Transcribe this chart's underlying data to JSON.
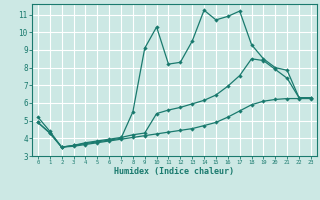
{
  "xlabel": "Humidex (Indice chaleur)",
  "bg_color": "#cce8e4",
  "grid_color": "#ffffff",
  "line_color": "#1a7a6e",
  "spine_color": "#1a7a6e",
  "tick_color": "#1a7a6e",
  "xlim": [
    -0.5,
    23.5
  ],
  "ylim": [
    3,
    11.6
  ],
  "xticks": [
    0,
    1,
    2,
    3,
    4,
    5,
    6,
    7,
    8,
    9,
    10,
    11,
    12,
    13,
    14,
    15,
    16,
    17,
    18,
    19,
    20,
    21,
    22,
    23
  ],
  "yticks": [
    3,
    4,
    5,
    6,
    7,
    8,
    9,
    10,
    11
  ],
  "line1_x": [
    0,
    1,
    2,
    3,
    4,
    5,
    6,
    7,
    8,
    9,
    10,
    11,
    12,
    13,
    14,
    15,
    16,
    17,
    18,
    19,
    20,
    21,
    22,
    23
  ],
  "line1_y": [
    5.2,
    4.4,
    3.5,
    3.6,
    3.7,
    3.8,
    3.9,
    4.0,
    5.5,
    9.1,
    10.3,
    8.2,
    8.3,
    9.5,
    11.25,
    10.7,
    10.9,
    11.2,
    9.3,
    8.5,
    8.0,
    7.85,
    6.3,
    6.3
  ],
  "line2_x": [
    0,
    1,
    2,
    3,
    4,
    5,
    6,
    7,
    8,
    9,
    10,
    11,
    12,
    13,
    14,
    15,
    16,
    17,
    18,
    19,
    20,
    21,
    22,
    23
  ],
  "line2_y": [
    4.9,
    4.3,
    3.5,
    3.6,
    3.75,
    3.85,
    3.95,
    4.05,
    4.2,
    4.3,
    5.4,
    5.6,
    5.75,
    5.95,
    6.15,
    6.45,
    6.95,
    7.55,
    8.5,
    8.4,
    7.9,
    7.4,
    6.3,
    6.3
  ],
  "line3_x": [
    0,
    1,
    2,
    3,
    4,
    5,
    6,
    7,
    8,
    9,
    10,
    11,
    12,
    13,
    14,
    15,
    16,
    17,
    18,
    19,
    20,
    21,
    22,
    23
  ],
  "line3_y": [
    4.9,
    4.3,
    3.5,
    3.55,
    3.65,
    3.75,
    3.85,
    3.95,
    4.05,
    4.15,
    4.25,
    4.35,
    4.45,
    4.55,
    4.72,
    4.9,
    5.2,
    5.55,
    5.9,
    6.1,
    6.2,
    6.25,
    6.25,
    6.25
  ]
}
